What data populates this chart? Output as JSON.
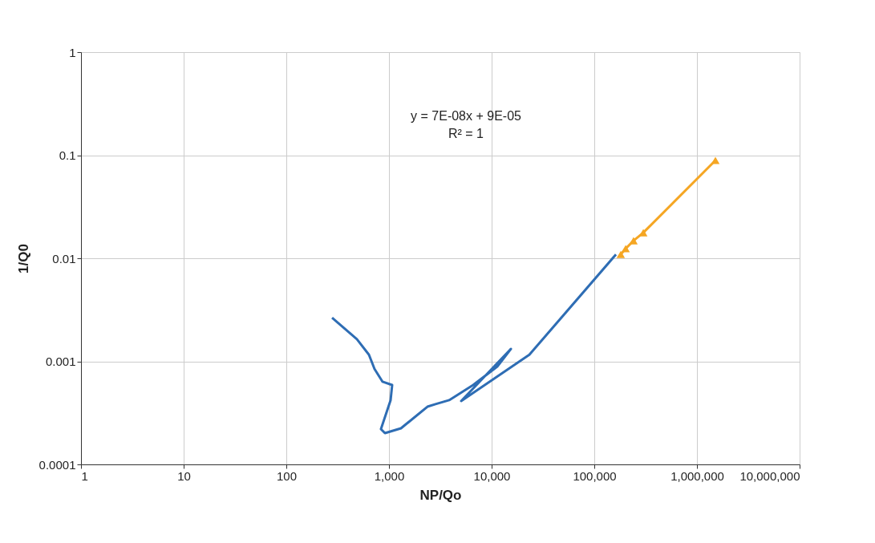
{
  "chart_data": {
    "type": "line",
    "xlabel": "NP/Qo",
    "ylabel": "1/Q0",
    "log": "xy",
    "grid": true,
    "xlim": [
      1,
      10000000
    ],
    "ylim": [
      0.0001,
      1
    ],
    "xticks": [
      1,
      10,
      100,
      {
        "value": 1000,
        "label": "1,000"
      },
      {
        "value": 10000,
        "label": "10,000"
      },
      {
        "value": 100000,
        "label": "100,000"
      },
      {
        "value": 1000000,
        "label": "1,000,000"
      },
      {
        "value": 10000000,
        "label": "10,000,000"
      }
    ],
    "yticks": [
      0.0001,
      0.001,
      0.01,
      0.1,
      1
    ],
    "annotations": [
      "y = 7E-08x + 9E-05",
      "R² = 1"
    ],
    "series": [
      {
        "marker": "none",
        "color": "#2e6db4",
        "x": [
          279,
          487,
          638,
          723,
          866,
          1074,
          1037,
          835,
          914,
          1309,
          2371,
          2837,
          3855,
          6607,
          11350,
          15400,
          5050,
          23300,
          162600
        ],
        "values": [
          0.00265,
          0.00164,
          0.00116,
          0.000844,
          0.000634,
          0.000589,
          0.00042,
          0.00022,
          0.000201,
          0.000224,
          0.000363,
          0.000384,
          0.00042,
          0.000589,
          0.00089,
          0.00132,
          0.000412,
          0.00116,
          0.0109
        ]
      },
      {
        "marker": "triangle",
        "color": "#f5a623",
        "x": [
          181000,
          202000,
          241000,
          300000,
          1513000
        ],
        "values": [
          0.0109,
          0.0124,
          0.0148,
          0.0177,
          0.089
        ]
      }
    ]
  }
}
